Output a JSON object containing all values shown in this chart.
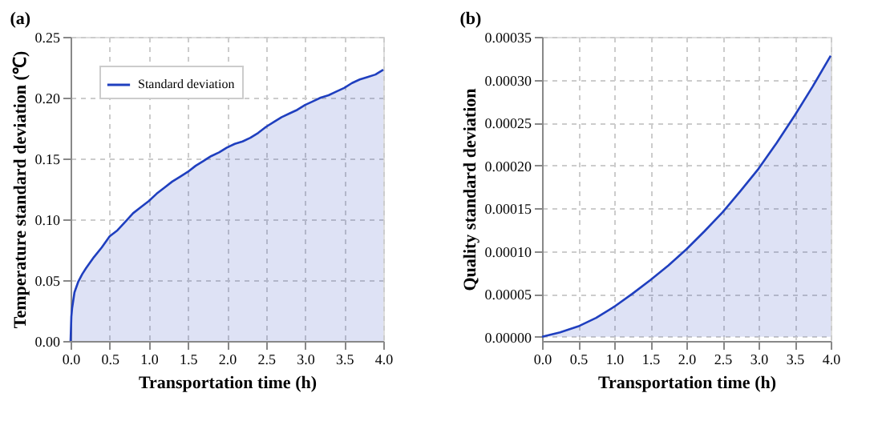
{
  "chart_data": [
    {
      "type": "area",
      "title": "(a)",
      "xlabel": "Transportation time (h)",
      "ylabel": "Temperature standard deviation (℃)",
      "x": [
        0,
        0.01,
        0.02,
        0.05,
        0.1,
        0.15,
        0.2,
        0.3,
        0.4,
        0.5,
        0.6,
        0.7,
        0.8,
        0.9,
        1.0,
        1.1,
        1.2,
        1.3,
        1.4,
        1.5,
        1.6,
        1.7,
        1.8,
        1.9,
        2.0,
        2.1,
        2.2,
        2.3,
        2.4,
        2.5,
        2.6,
        2.7,
        2.8,
        2.9,
        3.0,
        3.1,
        3.2,
        3.3,
        3.4,
        3.5,
        3.6,
        3.7,
        3.8,
        3.9,
        4.0
      ],
      "series": [
        {
          "name": "Standard deviation",
          "color": "#1f3fbf",
          "values": [
            0,
            0.02,
            0.027,
            0.04,
            0.049,
            0.055,
            0.06,
            0.069,
            0.077,
            0.086,
            0.091,
            0.098,
            0.105,
            0.11,
            0.115,
            0.121,
            0.126,
            0.131,
            0.135,
            0.139,
            0.144,
            0.148,
            0.152,
            0.155,
            0.159,
            0.162,
            0.164,
            0.167,
            0.171,
            0.176,
            0.18,
            0.184,
            0.187,
            0.19,
            0.194,
            0.197,
            0.2,
            0.202,
            0.205,
            0.208,
            0.212,
            0.215,
            0.217,
            0.219,
            0.223
          ]
        }
      ],
      "xlim": [
        0,
        4
      ],
      "ylim": [
        0,
        0.25
      ],
      "xticks": [
        {
          "value": 0,
          "label": "0.0"
        },
        0.5,
        {
          "value": 1,
          "label": "1.0"
        },
        1.5,
        {
          "value": 2,
          "label": "2.0"
        },
        2.5,
        {
          "value": 3,
          "label": "3.0"
        },
        3.5,
        {
          "value": 4,
          "label": "4.0"
        }
      ],
      "yticks": [
        {
          "value": 0,
          "label": "0.00"
        },
        0.05,
        {
          "value": 0.1,
          "label": "0.10"
        },
        0.15,
        {
          "value": 0.2,
          "label": "0.20"
        },
        0.25
      ],
      "grid": true,
      "legend": "top left"
    },
    {
      "type": "area",
      "title": "(b)",
      "xlabel": "Transportation time (h)",
      "ylabel": "Quality standard deviation",
      "x": [
        0,
        0.25,
        0.5,
        0.75,
        1.0,
        1.25,
        1.5,
        1.75,
        2.0,
        2.25,
        2.5,
        2.75,
        3.0,
        3.25,
        3.5,
        3.75,
        4.0
      ],
      "series": [
        {
          "name": "Standard deviation",
          "color": "#1f3fbf",
          "values": [
            0,
            5e-06,
            1.2e-05,
            2.2e-05,
            3.5e-05,
            5e-05,
            6.6e-05,
            8.3e-05,
            0.000102,
            0.000123,
            0.000145,
            0.00017,
            0.000196,
            0.000226,
            0.000258,
            0.000292,
            0.000328
          ]
        }
      ],
      "xlim": [
        0,
        4
      ],
      "ylim": [
        -5e-06,
        0.00035
      ],
      "xticks": [
        {
          "value": 0,
          "label": "0.0"
        },
        0.5,
        {
          "value": 1,
          "label": "1.0"
        },
        1.5,
        {
          "value": 2,
          "label": "2.0"
        },
        2.5,
        {
          "value": 3,
          "label": "3.0"
        },
        3.5,
        {
          "value": 4,
          "label": "4.0"
        }
      ],
      "yticks": [
        {
          "value": 0,
          "label": "0.00000"
        },
        {
          "value": 5e-05,
          "label": "0.00005"
        },
        {
          "value": 0.0001,
          "label": "0.00010"
        },
        {
          "value": 0.00015,
          "label": "0.00015"
        },
        {
          "value": 0.0002,
          "label": "0.00020"
        },
        {
          "value": 0.00025,
          "label": "0.00025"
        },
        {
          "value": 0.0003,
          "label": "0.00030"
        },
        {
          "value": 0.00035,
          "label": "0.00035"
        }
      ],
      "grid": true,
      "legend": "top left"
    }
  ]
}
